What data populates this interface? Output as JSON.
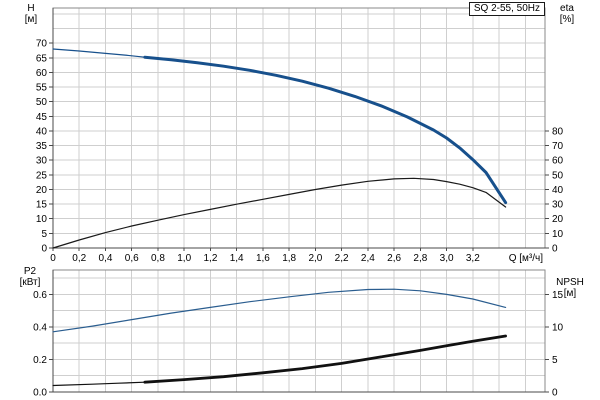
{
  "page": {
    "background": "#ffffff"
  },
  "colors": {
    "curve_blue": "#17508c",
    "curve_black": "#111111",
    "grid": "#cfcfcf",
    "frame": "#8a8a8a",
    "axis": "#4a4a4a",
    "text": "#000000"
  },
  "chart_data": [
    {
      "type": "line",
      "title": "SQ 2-55, 50Hz",
      "xlabel": "Q [м³/ч]",
      "left_axis": {
        "name": "H",
        "unit": "[м]"
      },
      "right_axis": {
        "name": "eta",
        "unit": "[%]"
      },
      "x_range": [
        0,
        3.75
      ],
      "x_grid_step": 0.2,
      "x_tick_values": [
        0,
        0.2,
        0.4,
        0.6,
        0.8,
        1,
        1.2,
        1.4,
        1.6,
        1.8,
        2,
        2.2,
        2.4,
        2.6,
        2.8,
        3,
        3.2
      ],
      "x_tick_labels": [
        "0",
        "0,2",
        "0,4",
        "0,6",
        "0,8",
        "1,0",
        "1,2",
        "1,4",
        "1,6",
        "1,8",
        "2,0",
        "2,2",
        "2,4",
        "2,6",
        "2,8",
        "3,0",
        "3,2"
      ],
      "y_left_range": [
        0,
        82
      ],
      "y_left_grid_step": 5,
      "y_left_tick_values": [
        0,
        5,
        10,
        15,
        20,
        25,
        30,
        35,
        40,
        45,
        50,
        55,
        60,
        65,
        70
      ],
      "y_left_tick_labels": [
        "0",
        "5",
        "10",
        "15",
        "20",
        "25",
        "30",
        "35",
        "40",
        "45",
        "50",
        "55",
        "60",
        "65",
        "70"
      ],
      "y_right_range": [
        0,
        164
      ],
      "y_right_tick_values": [
        0,
        10,
        20,
        30,
        40,
        50,
        60,
        70,
        80
      ],
      "y_right_tick_labels": [
        "0",
        "10",
        "20",
        "30",
        "40",
        "50",
        "60",
        "70",
        "80"
      ],
      "grid": true,
      "legend": "none",
      "series": [
        {
          "name": "head-curve-lead",
          "axis": "left",
          "color": "#17508c",
          "width": 1.2,
          "points": [
            [
              0,
              68
            ],
            [
              0.2,
              67.3
            ],
            [
              0.4,
              66.5
            ],
            [
              0.55,
              65.9
            ],
            [
              0.7,
              65.2
            ]
          ]
        },
        {
          "name": "head-curve",
          "axis": "left",
          "color": "#17508c",
          "width": 3,
          "points": [
            [
              0.7,
              65.2
            ],
            [
              0.9,
              64.3
            ],
            [
              1.1,
              63.3
            ],
            [
              1.3,
              62.1
            ],
            [
              1.5,
              60.7
            ],
            [
              1.7,
              59
            ],
            [
              1.9,
              57
            ],
            [
              2.1,
              54.6
            ],
            [
              2.3,
              51.8
            ],
            [
              2.5,
              48.6
            ],
            [
              2.7,
              44.8
            ],
            [
              2.9,
              40.3
            ],
            [
              3,
              37.6
            ],
            [
              3.1,
              34.2
            ],
            [
              3.2,
              30.2
            ],
            [
              3.3,
              25.8
            ],
            [
              3.45,
              15.5
            ]
          ]
        },
        {
          "name": "eta-curve",
          "axis": "right",
          "color": "#1a1a1a",
          "width": 1.2,
          "points": [
            [
              0,
              0
            ],
            [
              0.2,
              5.5
            ],
            [
              0.4,
              10.5
            ],
            [
              0.6,
              15
            ],
            [
              0.8,
              19
            ],
            [
              1,
              22.8
            ],
            [
              1.2,
              26.4
            ],
            [
              1.4,
              29.9
            ],
            [
              1.6,
              33.3
            ],
            [
              1.8,
              36.6
            ],
            [
              2,
              40
            ],
            [
              2.2,
              43
            ],
            [
              2.4,
              45.6
            ],
            [
              2.6,
              47.2
            ],
            [
              2.75,
              47.6
            ],
            [
              2.9,
              46.8
            ],
            [
              3,
              45.4
            ],
            [
              3.1,
              43.6
            ],
            [
              3.2,
              41.2
            ],
            [
              3.3,
              38
            ],
            [
              3.45,
              28
            ]
          ]
        }
      ]
    },
    {
      "type": "line",
      "title": "",
      "xlabel": "",
      "left_axis": {
        "name": "P2",
        "unit": "[кВт]"
      },
      "right_axis": {
        "name": "NPSH",
        "unit": "[м]"
      },
      "x_range": [
        0,
        3.75
      ],
      "x_grid_step": 0.2,
      "x_tick_values": [],
      "x_tick_labels": [],
      "y_left_range": [
        0,
        0.75
      ],
      "y_left_grid_step": 0.1,
      "y_left_tick_values": [
        0,
        0.2,
        0.4,
        0.6
      ],
      "y_left_tick_labels": [
        "0.0",
        "0.2",
        "0.4",
        "0.6"
      ],
      "y_right_range": [
        0,
        18.75
      ],
      "y_right_tick_values": [
        0,
        5,
        10,
        15
      ],
      "y_right_tick_labels": [
        "0",
        "5",
        "10",
        "15"
      ],
      "grid": true,
      "legend": "none",
      "series": [
        {
          "name": "p2-curve",
          "axis": "left",
          "color": "#2a5d8f",
          "width": 1.2,
          "points": [
            [
              0,
              0.37
            ],
            [
              0.3,
              0.405
            ],
            [
              0.6,
              0.445
            ],
            [
              0.9,
              0.485
            ],
            [
              1.2,
              0.52
            ],
            [
              1.5,
              0.555
            ],
            [
              1.8,
              0.585
            ],
            [
              2.1,
              0.613
            ],
            [
              2.4,
              0.63
            ],
            [
              2.6,
              0.632
            ],
            [
              2.8,
              0.622
            ],
            [
              3,
              0.6
            ],
            [
              3.2,
              0.572
            ],
            [
              3.45,
              0.52
            ]
          ]
        },
        {
          "name": "npsh-curve-lead",
          "axis": "right",
          "color": "#111111",
          "width": 1.2,
          "points": [
            [
              0,
              1
            ],
            [
              0.3,
              1.2
            ],
            [
              0.5,
              1.35
            ],
            [
              0.7,
              1.5
            ]
          ]
        },
        {
          "name": "npsh-curve",
          "axis": "right",
          "color": "#111111",
          "width": 2.8,
          "points": [
            [
              0.7,
              1.5
            ],
            [
              1,
              1.9
            ],
            [
              1.3,
              2.35
            ],
            [
              1.6,
              2.95
            ],
            [
              1.9,
              3.6
            ],
            [
              2.2,
              4.4
            ],
            [
              2.5,
              5.4
            ],
            [
              2.8,
              6.4
            ],
            [
              3,
              7.1
            ],
            [
              3.2,
              7.8
            ],
            [
              3.45,
              8.6
            ]
          ]
        }
      ]
    }
  ]
}
